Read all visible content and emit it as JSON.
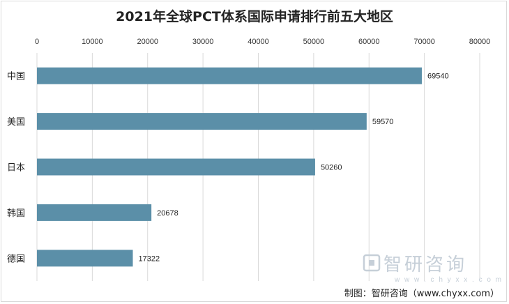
{
  "chart_data": {
    "type": "bar",
    "orientation": "horizontal",
    "title": "2021年全球PCT体系国际申请排行前五大地区",
    "categories": [
      "中国",
      "美国",
      "日本",
      "韩国",
      "德国"
    ],
    "values": [
      69540,
      59570,
      50260,
      20678,
      17322
    ],
    "xlim": [
      0,
      80000
    ],
    "xticks": [
      0,
      10000,
      20000,
      30000,
      40000,
      50000,
      60000,
      70000,
      80000
    ],
    "x_axis_position": "top",
    "grid": true,
    "legend": "none",
    "bar_color": "#5b8fa8"
  },
  "watermark": {
    "logo_text": "智研咨询",
    "url_text": "w w w . c h y x x . c o m"
  },
  "source_note": "制图：智研咨询（www.chyxx.com）"
}
